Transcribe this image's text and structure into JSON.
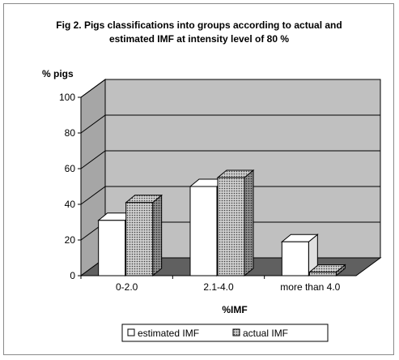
{
  "chart_data": {
    "type": "bar",
    "title_lines": [
      "Fig 2. Pigs classifications into groups according to actual and",
      "estimated IMF at intensity level of 80 %"
    ],
    "ylabel": "% pigs",
    "xlabel": "%IMF",
    "categories": [
      "0-2.0",
      "2.1-4.0",
      "more than 4.0"
    ],
    "series": [
      {
        "name": "estimated IMF",
        "values": [
          31,
          50,
          19
        ],
        "color": "#ffffff"
      },
      {
        "name": "actual IMF",
        "values": [
          41,
          55,
          2
        ],
        "color": "#c8c8c8"
      }
    ],
    "ylim": [
      0,
      100
    ],
    "yticks": [
      "0",
      "20",
      "40",
      "60",
      "80",
      "100"
    ],
    "grid": true,
    "legend": "bottom",
    "wall_color": "#c0c0c0",
    "floor_color": "#606060"
  }
}
